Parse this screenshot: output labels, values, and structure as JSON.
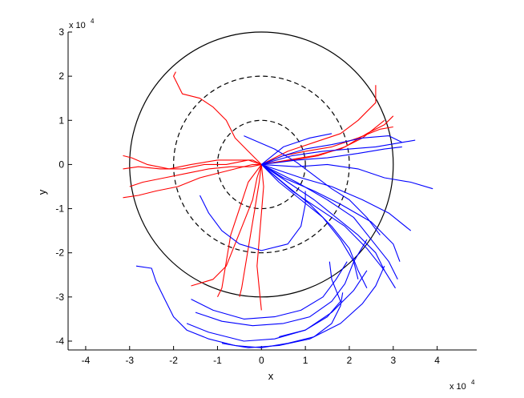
{
  "chart_data": {
    "type": "line",
    "title": "",
    "xlabel": "x",
    "ylabel": "y",
    "xlim": [
      -4.4,
      4.9
    ],
    "ylim": [
      -4.2,
      3.0
    ],
    "axis_scale_text": {
      "base": "x 10",
      "exponent": "4"
    },
    "x_ticks": [
      -4,
      -3,
      -2,
      -1,
      0,
      1,
      2,
      3,
      4
    ],
    "y_ticks": [
      -4,
      -3,
      -2,
      -1,
      0,
      1,
      2,
      3
    ],
    "grid": false,
    "legend": "none",
    "colors": {
      "red": "#ff0000",
      "blue": "#0000ff",
      "circle": "#000000"
    },
    "circles": [
      {
        "name": "outer-circle",
        "radius": 3,
        "style": "solid"
      },
      {
        "name": "middle-circle",
        "radius": 2,
        "style": "dashed"
      },
      {
        "name": "inner-circle",
        "radius": 1,
        "style": "dashed"
      }
    ],
    "series": [
      {
        "color": "red",
        "points": [
          [
            0,
            0
          ],
          [
            -0.3,
            0.1
          ],
          [
            -0.8,
            0.0
          ],
          [
            -1.3,
            0.0
          ],
          [
            -1.8,
            -0.1
          ],
          [
            -2.3,
            -0.1
          ],
          [
            -2.8,
            -0.05
          ],
          [
            -3.15,
            -0.1
          ]
        ]
      },
      {
        "color": "red",
        "points": [
          [
            0,
            0
          ],
          [
            -0.25,
            -0.05
          ],
          [
            -0.7,
            -0.05
          ],
          [
            -1.2,
            -0.1
          ],
          [
            -1.7,
            -0.2
          ],
          [
            -2.2,
            -0.3
          ],
          [
            -2.7,
            -0.4
          ],
          [
            -3.0,
            -0.5
          ]
        ]
      },
      {
        "color": "red",
        "points": [
          [
            0,
            0
          ],
          [
            -0.2,
            0.0
          ],
          [
            -0.6,
            -0.1
          ],
          [
            -1.0,
            -0.2
          ],
          [
            -1.4,
            -0.3
          ],
          [
            -1.9,
            -0.5
          ],
          [
            -2.4,
            -0.6
          ],
          [
            -2.8,
            -0.7
          ],
          [
            -3.15,
            -0.75
          ]
        ]
      },
      {
        "color": "red",
        "points": [
          [
            0,
            0
          ],
          [
            -0.2,
            0.1
          ],
          [
            -0.5,
            0.1
          ],
          [
            -1.0,
            0.1
          ],
          [
            -1.6,
            0.0
          ],
          [
            -2.1,
            -0.1
          ],
          [
            -2.6,
            0.0
          ],
          [
            -2.95,
            0.15
          ],
          [
            -3.15,
            0.2
          ]
        ]
      },
      {
        "color": "red",
        "points": [
          [
            0,
            0
          ],
          [
            -0.3,
            0.3
          ],
          [
            -0.6,
            0.6
          ],
          [
            -0.8,
            1.0
          ],
          [
            -1.1,
            1.3
          ],
          [
            -1.4,
            1.5
          ],
          [
            -1.8,
            1.6
          ],
          [
            -2.0,
            2.0
          ],
          [
            -1.95,
            2.1
          ]
        ]
      },
      {
        "color": "red",
        "points": [
          [
            0,
            0
          ],
          [
            -0.1,
            -0.3
          ],
          [
            -0.2,
            -0.8
          ],
          [
            -0.4,
            -1.3
          ],
          [
            -0.6,
            -1.8
          ],
          [
            -0.8,
            -2.3
          ],
          [
            -1.1,
            -2.6
          ],
          [
            -1.6,
            -2.75
          ]
        ]
      },
      {
        "color": "red",
        "points": [
          [
            0,
            0
          ],
          [
            -0.05,
            -0.4
          ],
          [
            -0.15,
            -1.0
          ],
          [
            -0.25,
            -1.6
          ],
          [
            -0.35,
            -2.2
          ],
          [
            -0.45,
            -2.8
          ],
          [
            -0.5,
            -3.0
          ]
        ]
      },
      {
        "color": "red",
        "points": [
          [
            0,
            0
          ],
          [
            0.05,
            -0.5
          ],
          [
            0.0,
            -1.1
          ],
          [
            -0.05,
            -1.7
          ],
          [
            -0.1,
            -2.3
          ],
          [
            -0.05,
            -2.8
          ],
          [
            0.0,
            -3.3
          ]
        ]
      },
      {
        "color": "red",
        "points": [
          [
            0,
            0
          ],
          [
            -0.3,
            -0.4
          ],
          [
            -0.5,
            -1.0
          ],
          [
            -0.7,
            -1.6
          ],
          [
            -0.8,
            -2.2
          ],
          [
            -0.9,
            -2.8
          ],
          [
            -1.0,
            -3.0
          ]
        ]
      },
      {
        "color": "red",
        "points": [
          [
            0,
            0
          ],
          [
            0.6,
            0.3
          ],
          [
            1.2,
            0.5
          ],
          [
            1.8,
            0.7
          ],
          [
            2.2,
            1.0
          ],
          [
            2.6,
            1.4
          ],
          [
            2.6,
            1.8
          ]
        ]
      },
      {
        "color": "red",
        "points": [
          [
            0,
            0
          ],
          [
            0.7,
            0.1
          ],
          [
            1.3,
            0.2
          ],
          [
            1.9,
            0.4
          ],
          [
            2.4,
            0.7
          ],
          [
            2.8,
            0.9
          ],
          [
            3.0,
            1.1
          ]
        ]
      },
      {
        "color": "red",
        "points": [
          [
            0,
            0
          ],
          [
            0.5,
            0.2
          ],
          [
            1.0,
            0.3
          ],
          [
            1.6,
            0.4
          ],
          [
            2.2,
            0.6
          ],
          [
            2.7,
            0.8
          ],
          [
            3.0,
            0.85
          ]
        ]
      },
      {
        "color": "red",
        "points": [
          [
            0,
            0
          ],
          [
            0.6,
            0.1
          ],
          [
            1.2,
            0.2
          ],
          [
            1.8,
            0.35
          ],
          [
            2.3,
            0.6
          ],
          [
            2.8,
            1.0
          ]
        ]
      },
      {
        "color": "blue",
        "points": [
          [
            0,
            0
          ],
          [
            0.5,
            0.2
          ],
          [
            1.0,
            0.35
          ],
          [
            1.6,
            0.45
          ],
          [
            2.3,
            0.6
          ],
          [
            2.9,
            0.65
          ],
          [
            3.2,
            0.5
          ]
        ]
      },
      {
        "color": "blue",
        "points": [
          [
            0,
            0
          ],
          [
            0.7,
            0.2
          ],
          [
            1.4,
            0.3
          ],
          [
            2.0,
            0.35
          ],
          [
            2.6,
            0.4
          ],
          [
            3.2,
            0.5
          ],
          [
            3.5,
            0.55
          ]
        ]
      },
      {
        "color": "blue",
        "points": [
          [
            0,
            0
          ],
          [
            0.8,
            0.1
          ],
          [
            1.5,
            0.15
          ],
          [
            2.2,
            0.25
          ],
          [
            2.8,
            0.35
          ],
          [
            3.2,
            0.4
          ]
        ]
      },
      {
        "color": "blue",
        "points": [
          [
            0,
            0
          ],
          [
            0.8,
            -0.05
          ],
          [
            1.5,
            0.0
          ],
          [
            2.2,
            -0.1
          ],
          [
            2.8,
            -0.3
          ],
          [
            3.4,
            -0.4
          ],
          [
            3.9,
            -0.55
          ]
        ]
      },
      {
        "color": "blue",
        "points": [
          [
            0,
            0
          ],
          [
            0.6,
            -0.4
          ],
          [
            1.2,
            -0.8
          ],
          [
            1.7,
            -1.2
          ],
          [
            2.2,
            -1.6
          ],
          [
            2.6,
            -2.0
          ],
          [
            2.8,
            -2.4
          ]
        ]
      },
      {
        "color": "blue",
        "points": [
          [
            0,
            0
          ],
          [
            0.7,
            -0.6
          ],
          [
            1.3,
            -1.0
          ],
          [
            1.9,
            -1.4
          ],
          [
            2.4,
            -1.9
          ],
          [
            2.8,
            -2.4
          ],
          [
            3.05,
            -2.8
          ]
        ]
      },
      {
        "color": "blue",
        "points": [
          [
            0,
            0
          ],
          [
            0.5,
            -0.3
          ],
          [
            1.2,
            -0.6
          ],
          [
            1.8,
            -0.9
          ],
          [
            2.5,
            -1.3
          ],
          [
            3.0,
            -1.8
          ],
          [
            3.15,
            -2.2
          ]
        ]
      },
      {
        "color": "blue",
        "points": [
          [
            0,
            0
          ],
          [
            0.9,
            -0.3
          ],
          [
            1.6,
            -0.5
          ],
          [
            2.3,
            -0.8
          ],
          [
            2.9,
            -1.1
          ],
          [
            3.4,
            -1.5
          ]
        ]
      },
      {
        "color": "blue",
        "points": [
          [
            0,
            0
          ],
          [
            0.6,
            -0.5
          ],
          [
            1.1,
            -0.9
          ],
          [
            1.6,
            -1.4
          ],
          [
            2.0,
            -1.9
          ],
          [
            2.2,
            -2.4
          ],
          [
            2.4,
            -2.8
          ]
        ]
      },
      {
        "color": "blue",
        "points": [
          [
            0,
            0
          ],
          [
            0.4,
            -0.4
          ],
          [
            0.9,
            -0.8
          ],
          [
            1.4,
            -1.2
          ],
          [
            1.8,
            -1.7
          ],
          [
            2.1,
            -2.2
          ],
          [
            2.2,
            -2.6
          ]
        ]
      },
      {
        "color": "blue",
        "points": [
          [
            0,
            0
          ],
          [
            0.8,
            -0.4
          ],
          [
            1.5,
            -0.8
          ],
          [
            2.1,
            -1.2
          ],
          [
            2.5,
            -1.7
          ],
          [
            2.9,
            -2.2
          ],
          [
            3.1,
            -2.6
          ]
        ]
      },
      {
        "color": "blue",
        "points": [
          [
            0,
            0
          ],
          [
            0.5,
            0.4
          ],
          [
            1.1,
            0.6
          ],
          [
            1.6,
            0.7
          ]
        ]
      },
      {
        "color": "blue",
        "points": [
          [
            -0.4,
            0.65
          ],
          [
            0.3,
            0.35
          ],
          [
            0.8,
            0.05
          ],
          [
            1.2,
            -0.25
          ],
          [
            1.6,
            -0.55
          ],
          [
            2.0,
            -0.8
          ],
          [
            2.4,
            -1.2
          ],
          [
            2.7,
            -1.6
          ]
        ]
      },
      {
        "color": "blue",
        "points": [
          [
            -1.4,
            -0.7
          ],
          [
            -1.2,
            -1.1
          ],
          [
            -0.9,
            -1.5
          ],
          [
            -0.5,
            -1.8
          ],
          [
            0.0,
            -1.95
          ],
          [
            0.6,
            -1.8
          ],
          [
            0.9,
            -1.4
          ],
          [
            1.0,
            -0.9
          ],
          [
            1.0,
            -0.6
          ]
        ]
      },
      {
        "color": "blue",
        "points": [
          [
            -2.85,
            -2.3
          ],
          [
            -2.5,
            -2.35
          ],
          [
            -2.4,
            -2.65
          ],
          [
            -2.2,
            -3.05
          ],
          [
            -2.0,
            -3.45
          ],
          [
            -1.7,
            -3.75
          ],
          [
            -1.2,
            -3.95
          ],
          [
            -0.6,
            -4.1
          ],
          [
            0.0,
            -4.15
          ],
          [
            0.6,
            -4.05
          ],
          [
            1.2,
            -3.9
          ],
          [
            1.6,
            -3.6
          ],
          [
            1.8,
            -3.2
          ],
          [
            1.85,
            -2.9
          ]
        ]
      },
      {
        "color": "blue",
        "points": [
          [
            -1.5,
            -3.35
          ],
          [
            -0.9,
            -3.55
          ],
          [
            -0.2,
            -3.65
          ],
          [
            0.5,
            -3.6
          ],
          [
            1.1,
            -3.45
          ],
          [
            1.6,
            -3.1
          ],
          [
            1.9,
            -2.7
          ],
          [
            2.1,
            -2.2
          ],
          [
            2.4,
            -1.7
          ]
        ]
      },
      {
        "color": "blue",
        "points": [
          [
            -1.6,
            -3.05
          ],
          [
            -1.1,
            -3.3
          ],
          [
            -0.4,
            -3.5
          ],
          [
            0.3,
            -3.45
          ],
          [
            0.9,
            -3.3
          ],
          [
            1.4,
            -3.0
          ],
          [
            1.7,
            -2.6
          ],
          [
            1.95,
            -2.2
          ]
        ]
      },
      {
        "color": "blue",
        "points": [
          [
            -1.7,
            -3.6
          ],
          [
            -1.2,
            -3.8
          ],
          [
            -0.4,
            -4.0
          ],
          [
            0.3,
            -3.95
          ],
          [
            1.0,
            -3.75
          ],
          [
            1.6,
            -3.35
          ],
          [
            2.1,
            -2.85
          ],
          [
            2.4,
            -2.4
          ]
        ]
      },
      {
        "color": "blue",
        "points": [
          [
            -0.9,
            -4.05
          ],
          [
            -0.3,
            -4.15
          ],
          [
            0.4,
            -4.1
          ],
          [
            1.1,
            -3.95
          ],
          [
            1.8,
            -3.6
          ],
          [
            2.3,
            -3.15
          ],
          [
            2.6,
            -2.75
          ],
          [
            2.8,
            -2.3
          ]
        ]
      },
      {
        "color": "blue",
        "points": [
          [
            0.4,
            -3.9
          ],
          [
            1.0,
            -3.75
          ],
          [
            1.5,
            -3.45
          ],
          [
            1.8,
            -3.1
          ],
          [
            1.6,
            -2.6
          ],
          [
            1.55,
            -2.2
          ]
        ]
      }
    ]
  }
}
